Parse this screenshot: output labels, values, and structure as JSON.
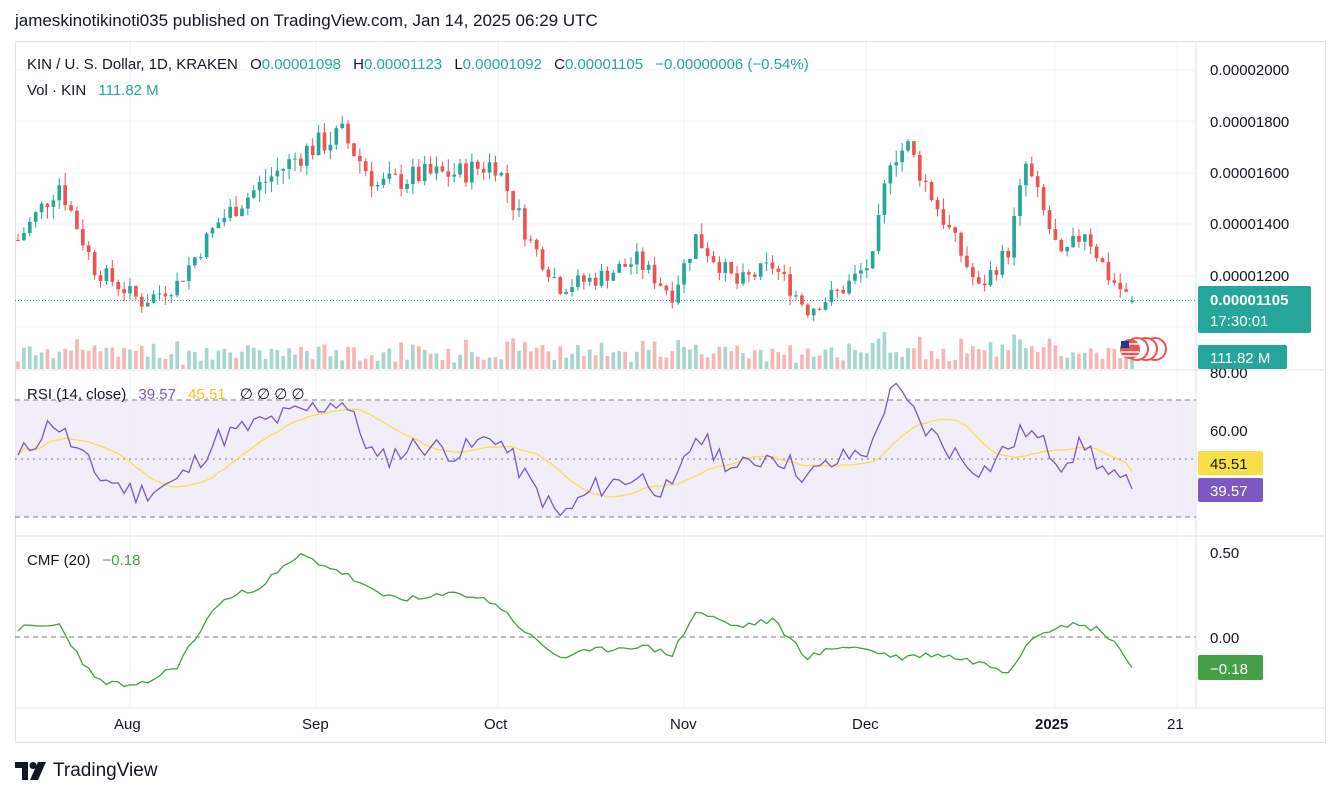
{
  "header": {
    "published_by": "jameskinotikinoti035 published on TradingView.com, Jan 14, 2025 06:29 UTC"
  },
  "footer": {
    "brand": "TradingView"
  },
  "colors": {
    "up": "#26a69a",
    "down": "#ef5350",
    "rsi": "#7e57c2",
    "rsi_ma": "#f5e04a",
    "cmf": "#43a047",
    "grid": "#f0f3fa"
  },
  "legend": {
    "symbol": "KIN / U. S. Dollar, 1D, KRAKEN",
    "o_label": "O",
    "o_value": "0.00001098",
    "h_label": "H",
    "h_value": "0.00001123",
    "l_label": "L",
    "l_value": "0.00001092",
    "c_label": "C",
    "c_value": "0.00001105",
    "change": "−0.00000006 (−0.54%)",
    "vol_label": "Vol · KIN",
    "vol_value": "111.82 M"
  },
  "price_axis": {
    "ticks": [
      "0.00002000",
      "0.00001800",
      "0.00001600",
      "0.00001400",
      "0.00001200"
    ],
    "last_price": "0.00001105",
    "countdown": "17:30:01",
    "volume_badge": "111.82 M"
  },
  "rsi": {
    "label": "RSI (14, close)",
    "value": "39.57",
    "ma_value": "45.51",
    "extra": "∅ ∅ ∅ ∅",
    "ticks": [
      "80.00",
      "60.00"
    ],
    "badge_rsi": "39.57",
    "badge_ma": "45.51"
  },
  "cmf": {
    "label": "CMF (20)",
    "value": "−0.18",
    "ticks": [
      "0.50",
      "0.00"
    ],
    "badge": "−0.18"
  },
  "time_axis": {
    "labels": [
      "Aug",
      "Sep",
      "Oct",
      "Nov",
      "Dec",
      "2025",
      "21"
    ]
  },
  "chart_data": [
    {
      "type": "candlestick",
      "title": "KIN / U. S. Dollar, 1D, KRAKEN",
      "x_start": "2024-07-09",
      "x_end": "2025-01-14",
      "ylim": [
        9.3e-06,
        2.03e-05
      ],
      "close_anchors": [
        [
          "2024-07-09",
          1.34e-05
        ],
        [
          "2024-07-16",
          1.56e-05
        ],
        [
          "2024-07-22",
          1.23e-05
        ],
        [
          "2024-07-30",
          1.1e-05
        ],
        [
          "2024-08-05",
          1.17e-05
        ],
        [
          "2024-08-12",
          1.41e-05
        ],
        [
          "2024-08-20",
          1.57e-05
        ],
        [
          "2024-08-27",
          1.69e-05
        ],
        [
          "2024-09-02",
          1.75e-05
        ],
        [
          "2024-09-08",
          1.55e-05
        ],
        [
          "2024-09-15",
          1.59e-05
        ],
        [
          "2024-09-22",
          1.6e-05
        ],
        [
          "2024-09-28",
          1.64e-05
        ],
        [
          "2024-10-04",
          1.33e-05
        ],
        [
          "2024-10-09",
          1.16e-05
        ],
        [
          "2024-10-15",
          1.19e-05
        ],
        [
          "2024-10-22",
          1.26e-05
        ],
        [
          "2024-10-28",
          1.13e-05
        ],
        [
          "2024-11-01",
          1.35e-05
        ],
        [
          "2024-11-08",
          1.17e-05
        ],
        [
          "2024-11-14",
          1.24e-05
        ],
        [
          "2024-11-20",
          1.07e-05
        ],
        [
          "2024-11-26",
          1.15e-05
        ],
        [
          "2024-12-01",
          1.26e-05
        ],
        [
          "2024-12-04",
          1.67e-05
        ],
        [
          "2024-12-07",
          1.7e-05
        ],
        [
          "2024-12-10",
          1.56e-05
        ],
        [
          "2024-12-15",
          1.33e-05
        ],
        [
          "2024-12-19",
          1.15e-05
        ],
        [
          "2024-12-24",
          1.3e-05
        ],
        [
          "2024-12-27",
          1.63e-05
        ],
        [
          "2025-01-02",
          1.26e-05
        ],
        [
          "2025-01-06",
          1.38e-05
        ],
        [
          "2025-01-10",
          1.2e-05
        ],
        [
          "2025-01-14",
          1.1e-05
        ]
      ],
      "last": {
        "open": 1.098e-05,
        "high": 1.123e-05,
        "low": 1.092e-05,
        "close": 1.105e-05
      }
    },
    {
      "type": "bar",
      "title": "Vol · KIN",
      "last_value": "111.82 M"
    },
    {
      "type": "line",
      "title": "RSI (14, close)",
      "series": [
        {
          "name": "RSI",
          "last": 39.57
        },
        {
          "name": "RSI-based MA",
          "last": 45.51
        }
      ],
      "bands": [
        70,
        30
      ],
      "ylim": [
        25,
        80
      ],
      "rsi_anchors": [
        [
          "2024-07-09",
          50
        ],
        [
          "2024-07-15",
          63
        ],
        [
          "2024-07-22",
          45
        ],
        [
          "2024-07-29",
          38
        ],
        [
          "2024-08-05",
          42
        ],
        [
          "2024-08-12",
          57
        ],
        [
          "2024-08-19",
          62
        ],
        [
          "2024-08-26",
          66
        ],
        [
          "2024-09-02",
          70
        ],
        [
          "2024-09-08",
          49
        ],
        [
          "2024-09-15",
          55
        ],
        [
          "2024-09-22",
          52
        ],
        [
          "2024-09-28",
          58
        ],
        [
          "2024-10-04",
          41
        ],
        [
          "2024-10-09",
          30
        ],
        [
          "2024-10-15",
          40
        ],
        [
          "2024-10-22",
          44
        ],
        [
          "2024-10-28",
          38
        ],
        [
          "2024-11-01",
          58
        ],
        [
          "2024-11-08",
          46
        ],
        [
          "2024-11-14",
          52
        ],
        [
          "2024-11-20",
          44
        ],
        [
          "2024-11-26",
          50
        ],
        [
          "2024-12-01",
          54
        ],
        [
          "2024-12-04",
          75
        ],
        [
          "2024-12-07",
          68
        ],
        [
          "2024-12-10",
          60
        ],
        [
          "2024-12-16",
          50
        ],
        [
          "2024-12-20",
          46
        ],
        [
          "2024-12-27",
          60
        ],
        [
          "2025-01-02",
          49
        ],
        [
          "2025-01-06",
          55
        ],
        [
          "2025-01-10",
          44
        ],
        [
          "2025-01-14",
          39.57
        ]
      ]
    },
    {
      "type": "line",
      "title": "CMF (20)",
      "ylim": [
        -0.35,
        0.55
      ],
      "last": -0.18,
      "cmf_anchors": [
        [
          "2024-07-09",
          0.05
        ],
        [
          "2024-07-16",
          0.07
        ],
        [
          "2024-07-22",
          -0.25
        ],
        [
          "2024-07-29",
          -0.3
        ],
        [
          "2024-08-05",
          -0.17
        ],
        [
          "2024-08-12",
          0.2
        ],
        [
          "2024-08-19",
          0.3
        ],
        [
          "2024-08-26",
          0.48
        ],
        [
          "2024-09-02",
          0.38
        ],
        [
          "2024-09-08",
          0.25
        ],
        [
          "2024-09-15",
          0.22
        ],
        [
          "2024-09-22",
          0.26
        ],
        [
          "2024-09-28",
          0.2
        ],
        [
          "2024-10-04",
          0.0
        ],
        [
          "2024-10-09",
          -0.12
        ],
        [
          "2024-10-15",
          -0.08
        ],
        [
          "2024-10-22",
          -0.05
        ],
        [
          "2024-10-28",
          -0.1
        ],
        [
          "2024-11-01",
          0.15
        ],
        [
          "2024-11-08",
          0.06
        ],
        [
          "2024-11-14",
          0.1
        ],
        [
          "2024-11-20",
          -0.12
        ],
        [
          "2024-11-26",
          -0.05
        ],
        [
          "2024-12-01",
          -0.08
        ],
        [
          "2024-12-05",
          -0.12
        ],
        [
          "2024-12-12",
          -0.1
        ],
        [
          "2024-12-19",
          -0.15
        ],
        [
          "2024-12-24",
          -0.2
        ],
        [
          "2024-12-28",
          0.0
        ],
        [
          "2025-01-02",
          0.08
        ],
        [
          "2025-01-08",
          0.05
        ],
        [
          "2025-01-11",
          -0.02
        ],
        [
          "2025-01-14",
          -0.18
        ]
      ]
    }
  ]
}
